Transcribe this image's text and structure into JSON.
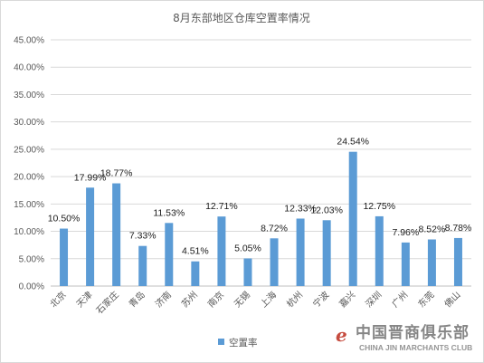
{
  "chart_data": {
    "type": "bar",
    "title": "8月东部地区仓库空置率情况",
    "categories": [
      "北京",
      "天津",
      "石家庄",
      "青岛",
      "济南",
      "苏州",
      "南京",
      "无锡",
      "上海",
      "杭州",
      "宁波",
      "嘉兴",
      "深圳",
      "广州",
      "东莞",
      "佛山"
    ],
    "series": [
      {
        "name": "空置率",
        "values": [
          10.5,
          17.99,
          18.77,
          7.33,
          11.53,
          4.51,
          12.71,
          5.05,
          8.72,
          12.33,
          12.03,
          24.54,
          12.75,
          7.96,
          8.52,
          8.78
        ],
        "data_labels": [
          "10.50%",
          "17.99%",
          "18.77%",
          "7.33%",
          "11.53%",
          "4.51%",
          "12.71%",
          "5.05%",
          "8.72%",
          "12.33%",
          "12.03%",
          "24.54%",
          "12.75%",
          "7.96%",
          "8.52%",
          "8.78%"
        ],
        "color": "#5b9bd5"
      }
    ],
    "y_ticks": [
      "0.00%",
      "5.00%",
      "10.00%",
      "15.00%",
      "20.00%",
      "25.00%",
      "30.00%",
      "35.00%",
      "40.00%",
      "45.00%"
    ],
    "ylim": [
      0,
      45
    ],
    "grid": true,
    "legend_position": "bottom",
    "gridline_color": "#d9d9d9"
  },
  "watermark": {
    "logo": "e",
    "name_cn": "中国晋商俱乐部",
    "name_en": "CHINA JIN MARCHANTS CLUB"
  }
}
